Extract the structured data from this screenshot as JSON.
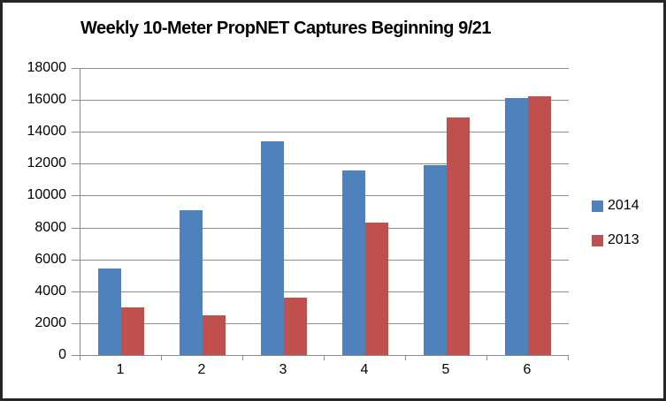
{
  "chart_data": {
    "type": "bar",
    "title": "Weekly 10-Meter PropNET Captures Beginning 9/21",
    "categories": [
      "1",
      "2",
      "3",
      "4",
      "5",
      "6"
    ],
    "series": [
      {
        "name": "2014",
        "color": "#4F81BD",
        "values": [
          5400,
          9100,
          13400,
          11600,
          11900,
          16100
        ]
      },
      {
        "name": "2013",
        "color": "#C0504D",
        "values": [
          3000,
          2500,
          3600,
          8300,
          14900,
          16200
        ]
      }
    ],
    "xlabel": "",
    "ylabel": "",
    "ylim": [
      0,
      18000
    ],
    "ytick_step": 2000,
    "ytick_labels": [
      "0",
      "2000",
      "4000",
      "6000",
      "8000",
      "10000",
      "12000",
      "14000",
      "16000",
      "18000"
    ],
    "grid": "horizontal gridlines on",
    "legend_position": "right"
  },
  "colors": {
    "series_2014": "#4F81BD",
    "series_2013": "#C0504D",
    "gridline": "#8C8C8C",
    "axis_line": "#8C8C8C",
    "frame_border": "#262626",
    "background": "#FFFFFF",
    "text": "#000000"
  }
}
